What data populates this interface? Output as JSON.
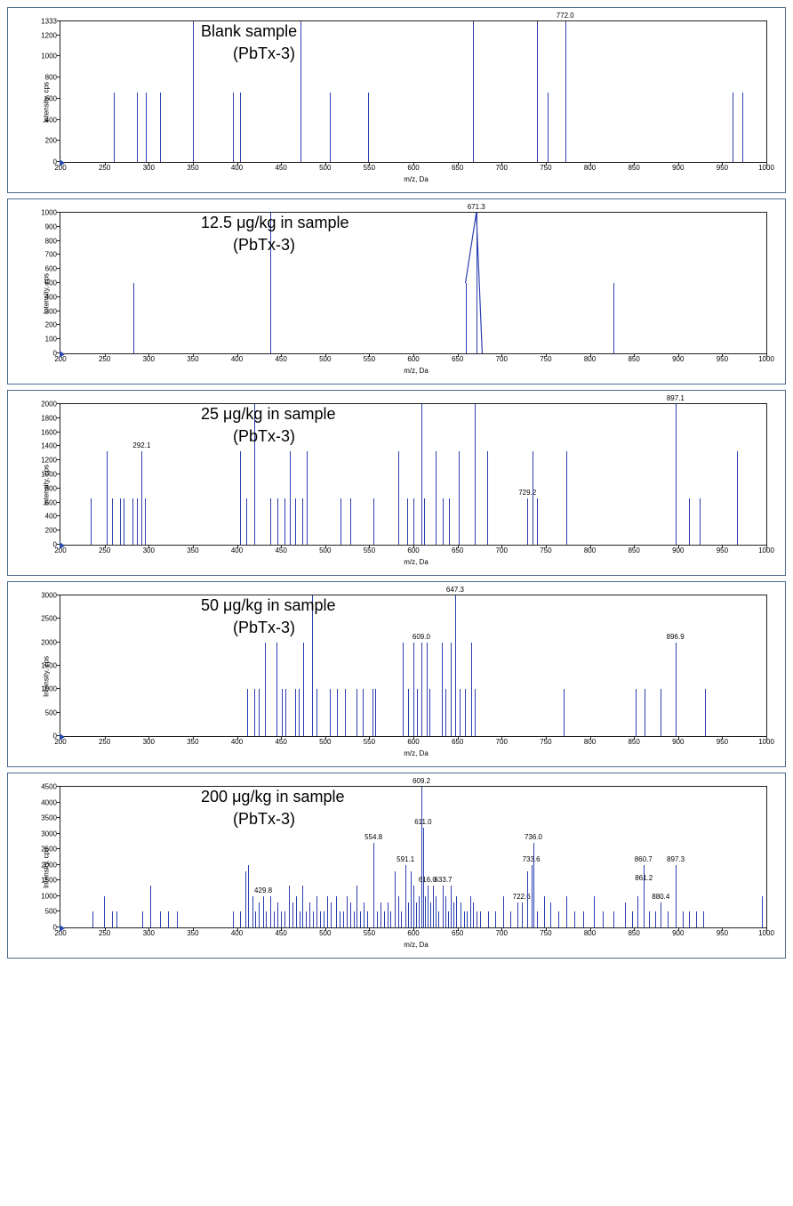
{
  "global": {
    "xlabel": "m/z, Da",
    "ylabel": "Intensity, cps",
    "xlim": [
      200,
      1000
    ],
    "xtick_step": 50,
    "bar_color": "#2b3fb0",
    "axis_color": "#222222",
    "background_color": "#ffffff",
    "border_color": "#4a6a8a",
    "title_fontsize": 18,
    "tick_fontsize": 8
  },
  "panels": [
    {
      "title_line1": "Blank sample",
      "title_line2": "(PbTx-3)",
      "ylim": [
        0,
        1333
      ],
      "yticks": [
        0,
        200,
        400,
        600,
        800,
        1000,
        1200,
        1333
      ],
      "peaks": [
        {
          "mz": 260,
          "i": 660
        },
        {
          "mz": 287,
          "i": 660
        },
        {
          "mz": 297,
          "i": 660
        },
        {
          "mz": 313,
          "i": 660
        },
        {
          "mz": 350,
          "i": 1333
        },
        {
          "mz": 395,
          "i": 660
        },
        {
          "mz": 404,
          "i": 660
        },
        {
          "mz": 472,
          "i": 1333
        },
        {
          "mz": 505,
          "i": 660
        },
        {
          "mz": 549,
          "i": 660
        },
        {
          "mz": 668,
          "i": 1333
        },
        {
          "mz": 740,
          "i": 1333
        },
        {
          "mz": 752,
          "i": 660
        },
        {
          "mz": 772,
          "i": 1333,
          "label": "772.0"
        },
        {
          "mz": 962,
          "i": 660
        },
        {
          "mz": 973,
          "i": 660
        }
      ]
    },
    {
      "title_line1": "12.5 μg/kg in sample",
      "title_line2": "(PbTx-3)",
      "ylim": [
        0,
        1000
      ],
      "yticks": [
        0,
        100,
        200,
        300,
        400,
        500,
        600,
        700,
        800,
        900,
        1000
      ],
      "peaks": [
        {
          "mz": 283,
          "i": 500
        },
        {
          "mz": 438,
          "i": 1000
        },
        {
          "mz": 659,
          "i": 500,
          "connect_to_next": true
        },
        {
          "mz": 671.3,
          "i": 1000,
          "label": "671.3",
          "connect_to_next": true
        },
        {
          "mz": 678,
          "i": 0
        },
        {
          "mz": 827,
          "i": 500
        }
      ],
      "connected_series": [
        [
          659,
          500
        ],
        [
          671.3,
          1000
        ],
        [
          678,
          0
        ]
      ]
    },
    {
      "title_line1": "25 μg/kg in sample",
      "title_line2": "(PbTx-3)",
      "ylim": [
        0,
        2000
      ],
      "yticks": [
        0,
        200,
        400,
        600,
        800,
        1000,
        1200,
        1400,
        1600,
        1800,
        2000
      ],
      "peaks": [
        {
          "mz": 234,
          "i": 660
        },
        {
          "mz": 252,
          "i": 1330
        },
        {
          "mz": 258,
          "i": 660
        },
        {
          "mz": 268,
          "i": 660
        },
        {
          "mz": 272,
          "i": 660
        },
        {
          "mz": 282,
          "i": 660
        },
        {
          "mz": 287,
          "i": 660
        },
        {
          "mz": 292.1,
          "i": 1330,
          "label": "292.1"
        },
        {
          "mz": 296,
          "i": 660
        },
        {
          "mz": 404,
          "i": 1330
        },
        {
          "mz": 411,
          "i": 660
        },
        {
          "mz": 420,
          "i": 2000
        },
        {
          "mz": 438,
          "i": 660
        },
        {
          "mz": 446,
          "i": 660
        },
        {
          "mz": 454,
          "i": 660
        },
        {
          "mz": 460,
          "i": 1330
        },
        {
          "mz": 466,
          "i": 660
        },
        {
          "mz": 474,
          "i": 660
        },
        {
          "mz": 479,
          "i": 1330
        },
        {
          "mz": 517,
          "i": 660
        },
        {
          "mz": 528,
          "i": 660
        },
        {
          "mz": 555,
          "i": 660
        },
        {
          "mz": 583,
          "i": 1330
        },
        {
          "mz": 593,
          "i": 660
        },
        {
          "mz": 600,
          "i": 660
        },
        {
          "mz": 609,
          "i": 2000
        },
        {
          "mz": 612,
          "i": 660
        },
        {
          "mz": 625,
          "i": 1330
        },
        {
          "mz": 633,
          "i": 660
        },
        {
          "mz": 640,
          "i": 660
        },
        {
          "mz": 651,
          "i": 1330
        },
        {
          "mz": 670,
          "i": 2000
        },
        {
          "mz": 684,
          "i": 1330
        },
        {
          "mz": 729.2,
          "i": 660,
          "label": "729.2"
        },
        {
          "mz": 735,
          "i": 1330
        },
        {
          "mz": 740,
          "i": 660
        },
        {
          "mz": 773,
          "i": 1330
        },
        {
          "mz": 897.1,
          "i": 2000,
          "label": "897.1"
        },
        {
          "mz": 912,
          "i": 660
        },
        {
          "mz": 924,
          "i": 660
        },
        {
          "mz": 967,
          "i": 1330
        }
      ]
    },
    {
      "title_line1": "50 μg/kg in sample",
      "title_line2": "(PbTx-3)",
      "ylim": [
        0,
        3000
      ],
      "yticks": [
        0,
        500,
        1000,
        1500,
        2000,
        2500,
        3000
      ],
      "peaks": [
        {
          "mz": 412,
          "i": 1000
        },
        {
          "mz": 420,
          "i": 1000
        },
        {
          "mz": 425,
          "i": 1000
        },
        {
          "mz": 432,
          "i": 2000
        },
        {
          "mz": 445,
          "i": 2000
        },
        {
          "mz": 451,
          "i": 1000
        },
        {
          "mz": 455,
          "i": 1000
        },
        {
          "mz": 466,
          "i": 1000
        },
        {
          "mz": 470,
          "i": 1000
        },
        {
          "mz": 475,
          "i": 2000
        },
        {
          "mz": 485,
          "i": 3000
        },
        {
          "mz": 490,
          "i": 1000
        },
        {
          "mz": 505,
          "i": 1000
        },
        {
          "mz": 513,
          "i": 1000
        },
        {
          "mz": 522,
          "i": 1000
        },
        {
          "mz": 536,
          "i": 1000
        },
        {
          "mz": 543,
          "i": 1000
        },
        {
          "mz": 554,
          "i": 1000
        },
        {
          "mz": 557,
          "i": 1000
        },
        {
          "mz": 588,
          "i": 2000
        },
        {
          "mz": 594,
          "i": 1000
        },
        {
          "mz": 600,
          "i": 2000
        },
        {
          "mz": 604,
          "i": 1000
        },
        {
          "mz": 609,
          "i": 2000,
          "label": "609.0"
        },
        {
          "mz": 615,
          "i": 2000
        },
        {
          "mz": 618,
          "i": 1000
        },
        {
          "mz": 632,
          "i": 2000
        },
        {
          "mz": 636,
          "i": 1000
        },
        {
          "mz": 642,
          "i": 2000
        },
        {
          "mz": 647.3,
          "i": 3000,
          "label": "647.3"
        },
        {
          "mz": 652,
          "i": 1000
        },
        {
          "mz": 658,
          "i": 1000
        },
        {
          "mz": 665,
          "i": 2000
        },
        {
          "mz": 670,
          "i": 1000
        },
        {
          "mz": 770,
          "i": 1000
        },
        {
          "mz": 852,
          "i": 1000
        },
        {
          "mz": 862,
          "i": 1000
        },
        {
          "mz": 880,
          "i": 1000
        },
        {
          "mz": 896.9,
          "i": 2000,
          "label": "896.9"
        },
        {
          "mz": 930,
          "i": 1000
        }
      ]
    },
    {
      "title_line1": "200 μg/kg in sample",
      "title_line2": "(PbTx-3)",
      "ylim": [
        0,
        4500
      ],
      "yticks": [
        0,
        500,
        1000,
        1500,
        2000,
        2500,
        3000,
        3500,
        4000,
        4500
      ],
      "peaks": [
        {
          "mz": 236,
          "i": 500
        },
        {
          "mz": 249,
          "i": 1000
        },
        {
          "mz": 258,
          "i": 500
        },
        {
          "mz": 263,
          "i": 500
        },
        {
          "mz": 293,
          "i": 500
        },
        {
          "mz": 302,
          "i": 1330
        },
        {
          "mz": 313,
          "i": 500
        },
        {
          "mz": 322,
          "i": 500
        },
        {
          "mz": 332,
          "i": 500
        },
        {
          "mz": 395,
          "i": 500
        },
        {
          "mz": 404,
          "i": 500
        },
        {
          "mz": 410,
          "i": 1800
        },
        {
          "mz": 413,
          "i": 2000
        },
        {
          "mz": 418,
          "i": 1000
        },
        {
          "mz": 421,
          "i": 500
        },
        {
          "mz": 425,
          "i": 800
        },
        {
          "mz": 429.8,
          "i": 1000,
          "label": "429.8"
        },
        {
          "mz": 433,
          "i": 500
        },
        {
          "mz": 438,
          "i": 1000
        },
        {
          "mz": 442,
          "i": 500
        },
        {
          "mz": 446,
          "i": 800
        },
        {
          "mz": 450,
          "i": 500
        },
        {
          "mz": 454,
          "i": 500
        },
        {
          "mz": 459,
          "i": 1330
        },
        {
          "mz": 463,
          "i": 800
        },
        {
          "mz": 467,
          "i": 1000
        },
        {
          "mz": 471,
          "i": 500
        },
        {
          "mz": 474,
          "i": 1330
        },
        {
          "mz": 478,
          "i": 500
        },
        {
          "mz": 482,
          "i": 800
        },
        {
          "mz": 486,
          "i": 500
        },
        {
          "mz": 490,
          "i": 1000
        },
        {
          "mz": 494,
          "i": 500
        },
        {
          "mz": 498,
          "i": 500
        },
        {
          "mz": 502,
          "i": 1000
        },
        {
          "mz": 506,
          "i": 800
        },
        {
          "mz": 512,
          "i": 1000
        },
        {
          "mz": 516,
          "i": 500
        },
        {
          "mz": 520,
          "i": 500
        },
        {
          "mz": 524,
          "i": 1000
        },
        {
          "mz": 528,
          "i": 800
        },
        {
          "mz": 532,
          "i": 500
        },
        {
          "mz": 536,
          "i": 1330
        },
        {
          "mz": 540,
          "i": 500
        },
        {
          "mz": 544,
          "i": 800
        },
        {
          "mz": 548,
          "i": 500
        },
        {
          "mz": 554.8,
          "i": 2700,
          "label": "554.8"
        },
        {
          "mz": 559,
          "i": 500
        },
        {
          "mz": 563,
          "i": 800
        },
        {
          "mz": 567,
          "i": 500
        },
        {
          "mz": 571,
          "i": 800
        },
        {
          "mz": 574,
          "i": 500
        },
        {
          "mz": 579,
          "i": 1800
        },
        {
          "mz": 583,
          "i": 1000
        },
        {
          "mz": 586,
          "i": 500
        },
        {
          "mz": 591.1,
          "i": 2000,
          "label": "591.1"
        },
        {
          "mz": 594,
          "i": 800
        },
        {
          "mz": 597,
          "i": 1800
        },
        {
          "mz": 600,
          "i": 1330
        },
        {
          "mz": 603,
          "i": 800
        },
        {
          "mz": 606,
          "i": 1000
        },
        {
          "mz": 609.2,
          "i": 4500,
          "label": "609.2"
        },
        {
          "mz": 611,
          "i": 3200,
          "label": "611.0"
        },
        {
          "mz": 613,
          "i": 1000
        },
        {
          "mz": 616,
          "i": 1330,
          "label": "616.0"
        },
        {
          "mz": 619,
          "i": 800
        },
        {
          "mz": 622,
          "i": 1330
        },
        {
          "mz": 625,
          "i": 1000
        },
        {
          "mz": 628,
          "i": 500
        },
        {
          "mz": 633.7,
          "i": 1330,
          "label": "633.7"
        },
        {
          "mz": 636,
          "i": 1000
        },
        {
          "mz": 639,
          "i": 500
        },
        {
          "mz": 642,
          "i": 1330
        },
        {
          "mz": 645,
          "i": 800
        },
        {
          "mz": 648,
          "i": 1000
        },
        {
          "mz": 653,
          "i": 800
        },
        {
          "mz": 657,
          "i": 500
        },
        {
          "mz": 660,
          "i": 500
        },
        {
          "mz": 664,
          "i": 1000
        },
        {
          "mz": 668,
          "i": 800
        },
        {
          "mz": 672,
          "i": 500
        },
        {
          "mz": 676,
          "i": 500
        },
        {
          "mz": 685,
          "i": 500
        },
        {
          "mz": 693,
          "i": 500
        },
        {
          "mz": 702,
          "i": 1000
        },
        {
          "mz": 710,
          "i": 500
        },
        {
          "mz": 718,
          "i": 800
        },
        {
          "mz": 722.6,
          "i": 800,
          "label": "722.6"
        },
        {
          "mz": 729,
          "i": 1800
        },
        {
          "mz": 733.6,
          "i": 2000,
          "label": "733.6"
        },
        {
          "mz": 736,
          "i": 2700,
          "label": "736.0"
        },
        {
          "mz": 740,
          "i": 500
        },
        {
          "mz": 748,
          "i": 1000
        },
        {
          "mz": 755,
          "i": 800
        },
        {
          "mz": 764,
          "i": 500
        },
        {
          "mz": 773,
          "i": 1000
        },
        {
          "mz": 782,
          "i": 500
        },
        {
          "mz": 792,
          "i": 500
        },
        {
          "mz": 805,
          "i": 1000
        },
        {
          "mz": 815,
          "i": 500
        },
        {
          "mz": 827,
          "i": 500
        },
        {
          "mz": 840,
          "i": 800
        },
        {
          "mz": 848,
          "i": 500
        },
        {
          "mz": 854,
          "i": 1000
        },
        {
          "mz": 860.7,
          "i": 2000,
          "label": "860.7"
        },
        {
          "mz": 861.2,
          "i": 1400,
          "label": "861.2"
        },
        {
          "mz": 867,
          "i": 500
        },
        {
          "mz": 874,
          "i": 500
        },
        {
          "mz": 880.4,
          "i": 800,
          "label": "880.4"
        },
        {
          "mz": 888,
          "i": 500
        },
        {
          "mz": 897.3,
          "i": 2000,
          "label": "897.3"
        },
        {
          "mz": 905,
          "i": 500
        },
        {
          "mz": 912,
          "i": 500
        },
        {
          "mz": 920,
          "i": 500
        },
        {
          "mz": 928,
          "i": 500
        },
        {
          "mz": 995,
          "i": 1000
        }
      ]
    }
  ]
}
